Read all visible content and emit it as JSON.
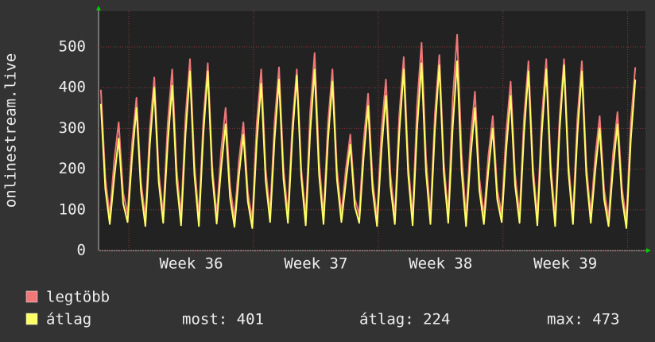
{
  "chart_data": {
    "type": "line",
    "y_label": "onlinestream.live",
    "x": [
      0.13,
      0.38,
      0.63,
      0.88,
      1.13,
      1.38,
      1.63,
      1.88,
      2.13,
      2.38,
      2.63,
      2.88,
      3.13,
      3.38,
      3.63,
      3.88,
      4.13,
      4.38,
      4.63,
      4.88,
      5.13,
      5.38,
      5.63,
      5.88,
      6.13,
      6.38,
      6.63,
      6.88,
      7.13,
      7.38,
      7.63,
      7.88,
      8.13,
      8.38,
      8.63,
      8.88,
      9.13,
      9.38,
      9.63,
      9.88,
      10.13,
      10.38,
      10.63,
      10.88,
      11.13,
      11.38,
      11.63,
      11.88,
      12.13,
      12.38,
      12.63,
      12.88,
      13.13,
      13.38,
      13.63,
      13.88,
      14.13,
      14.38,
      14.63,
      14.88,
      15.13,
      15.38,
      15.63,
      15.88,
      16.13,
      16.38,
      16.63,
      16.88,
      17.13,
      17.38,
      17.63,
      17.88,
      18.13,
      18.38,
      18.63,
      18.88,
      19.13,
      19.38,
      19.63,
      19.88,
      20.13,
      20.38,
      20.63,
      20.88,
      21.13,
      21.38,
      21.63,
      21.88,
      22.13,
      22.38,
      22.63,
      22.88,
      23.13,
      23.38,
      23.63,
      23.88,
      24.13,
      24.38,
      24.63,
      24.88,
      25.13,
      25.38,
      25.63,
      25.88,
      26.13,
      26.38,
      26.63,
      26.88,
      27.13,
      27.38,
      27.63,
      27.88,
      28.13,
      28.38,
      28.63,
      28.88,
      29.13,
      29.38,
      29.63,
      29.88,
      30.13
    ],
    "series": [
      {
        "name": "legtöbb",
        "color": "#f07878",
        "values": [
          395,
          178,
          85,
          221,
          315,
          142,
          90,
          263,
          375,
          169,
          80,
          298,
          425,
          191,
          88,
          312,
          445,
          200,
          82,
          329,
          470,
          212,
          80,
          322,
          460,
          207,
          85,
          245,
          350,
          158,
          78,
          221,
          315,
          142,
          75,
          312,
          445,
          200,
          90,
          315,
          450,
          203,
          88,
          312,
          445,
          200,
          82,
          340,
          485,
          218,
          85,
          312,
          445,
          200,
          90,
          200,
          285,
          128,
          88,
          270,
          385,
          173,
          80,
          294,
          420,
          189,
          85,
          333,
          475,
          214,
          82,
          357,
          510,
          230,
          85,
          336,
          480,
          216,
          88,
          371,
          530,
          239,
          80,
          273,
          390,
          176,
          85,
          231,
          330,
          149,
          90,
          291,
          415,
          187,
          88,
          326,
          465,
          209,
          82,
          329,
          470,
          212,
          80,
          329,
          470,
          212,
          85,
          326,
          465,
          209,
          88,
          231,
          330,
          149,
          80,
          238,
          340,
          153,
          75,
          315,
          450
        ]
      },
      {
        "name": "átlag",
        "color": "#ffff66",
        "values": [
          360,
          151,
          65,
          179,
          275,
          116,
          70,
          228,
          350,
          147,
          60,
          260,
          400,
          168,
          68,
          263,
          405,
          170,
          62,
          286,
          440,
          185,
          60,
          286,
          440,
          185,
          66,
          202,
          310,
          130,
          58,
          185,
          285,
          120,
          55,
          267,
          410,
          172,
          70,
          273,
          420,
          176,
          68,
          280,
          430,
          181,
          62,
          289,
          445,
          187,
          65,
          270,
          415,
          174,
          70,
          169,
          260,
          109,
          68,
          231,
          355,
          149,
          60,
          247,
          380,
          160,
          65,
          289,
          445,
          187,
          62,
          299,
          460,
          193,
          65,
          296,
          455,
          191,
          68,
          302,
          465,
          195,
          60,
          228,
          350,
          147,
          65,
          195,
          300,
          126,
          70,
          247,
          380,
          160,
          68,
          286,
          440,
          185,
          62,
          289,
          445,
          187,
          60,
          296,
          455,
          191,
          65,
          286,
          440,
          185,
          68,
          195,
          300,
          126,
          60,
          202,
          310,
          130,
          55,
          273,
          420
        ]
      }
    ],
    "xlim": [
      0,
      30.7
    ],
    "xticks": [
      {
        "value": 5.2,
        "label": "Week 36"
      },
      {
        "value": 12.2,
        "label": "Week 37"
      },
      {
        "value": 19.2,
        "label": "Week 38"
      },
      {
        "value": 26.2,
        "label": "Week 39"
      }
    ],
    "xgrid": [
      1.7,
      8.7,
      15.7,
      22.7,
      29.7
    ],
    "ylim": [
      0,
      588
    ],
    "yticks": [
      0,
      100,
      200,
      300,
      400,
      500
    ],
    "grid": true,
    "stats": [
      "most: 401",
      "átlag: 224",
      "max: 473"
    ]
  }
}
